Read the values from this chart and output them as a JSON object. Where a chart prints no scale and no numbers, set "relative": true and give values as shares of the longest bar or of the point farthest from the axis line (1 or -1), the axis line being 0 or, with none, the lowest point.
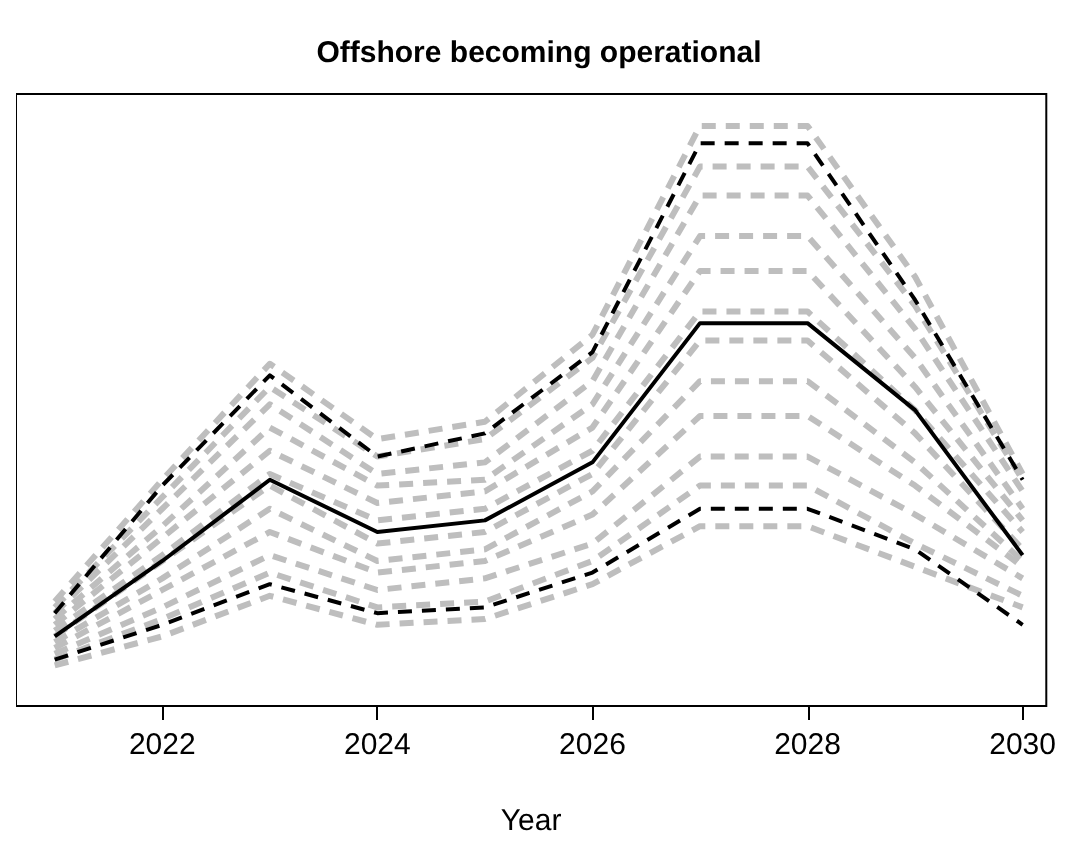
{
  "chart_data": {
    "type": "line",
    "title": "Offshore becoming operational",
    "xlabel": "Year",
    "relative": true,
    "grid": false,
    "marker": "none",
    "x": [
      2021,
      2022,
      2023,
      2024,
      2025,
      2026,
      2027,
      2028,
      2029,
      2030
    ],
    "xlim": [
      2020.64,
      2030.22
    ],
    "xticks": [
      2022,
      2024,
      2026,
      2028,
      2030
    ],
    "tick_labels": "x",
    "series": [
      {
        "color": "#bebebe",
        "line_style": "dashed",
        "values": [
          0.07,
          0.12,
          0.19,
          0.14,
          0.15,
          0.21,
          0.31,
          0.31,
          0.24,
          0.17
        ]
      },
      {
        "color": "#bebebe",
        "line_style": "dashed",
        "values": [
          0.08,
          0.15,
          0.23,
          0.17,
          0.18,
          0.25,
          0.38,
          0.38,
          0.28,
          0.19
        ]
      },
      {
        "color": "#bebebe",
        "line_style": "dashed",
        "values": [
          0.09,
          0.17,
          0.26,
          0.2,
          0.22,
          0.28,
          0.43,
          0.43,
          0.33,
          0.22
        ]
      },
      {
        "color": "#bebebe",
        "line_style": "dashed",
        "values": [
          0.1,
          0.2,
          0.3,
          0.23,
          0.25,
          0.33,
          0.5,
          0.5,
          0.38,
          0.24
        ]
      },
      {
        "color": "#bebebe",
        "line_style": "dashed",
        "values": [
          0.11,
          0.22,
          0.34,
          0.25,
          0.27,
          0.37,
          0.56,
          0.56,
          0.42,
          0.25
        ]
      },
      {
        "color": "#bebebe",
        "line_style": "dashed",
        "values": [
          0.12,
          0.25,
          0.38,
          0.28,
          0.3,
          0.4,
          0.63,
          0.63,
          0.47,
          0.27
        ]
      },
      {
        "color": "#bebebe",
        "line_style": "dashed",
        "values": [
          0.13,
          0.26,
          0.4,
          0.32,
          0.34,
          0.44,
          0.68,
          0.68,
          0.51,
          0.3
        ]
      },
      {
        "color": "#bebebe",
        "line_style": "dashed",
        "values": [
          0.14,
          0.29,
          0.44,
          0.35,
          0.37,
          0.48,
          0.75,
          0.75,
          0.55,
          0.32
        ]
      },
      {
        "color": "#bebebe",
        "line_style": "dashed",
        "values": [
          0.15,
          0.31,
          0.48,
          0.38,
          0.39,
          0.52,
          0.81,
          0.81,
          0.6,
          0.34
        ]
      },
      {
        "color": "#bebebe",
        "line_style": "dashed",
        "values": [
          0.16,
          0.34,
          0.52,
          0.4,
          0.42,
          0.56,
          0.88,
          0.88,
          0.65,
          0.37
        ]
      },
      {
        "color": "#bebebe",
        "line_style": "dashed",
        "values": [
          0.17,
          0.36,
          0.55,
          0.43,
          0.46,
          0.6,
          0.93,
          0.93,
          0.69,
          0.39
        ]
      },
      {
        "color": "#bebebe",
        "line_style": "dashed",
        "values": [
          0.18,
          0.39,
          0.59,
          0.46,
          0.49,
          0.64,
          1,
          1,
          0.74,
          0.4
        ]
      },
      {
        "color": "#000000",
        "line_style": "dashed",
        "values": [
          0.08,
          0.14,
          0.21,
          0.16,
          0.17,
          0.23,
          0.34,
          0.34,
          0.27,
          0.14
        ]
      },
      {
        "color": "#000000",
        "line_style": "dashed",
        "values": [
          0.16,
          0.38,
          0.57,
          0.43,
          0.47,
          0.61,
          0.97,
          0.97,
          0.7,
          0.39
        ]
      },
      {
        "color": "#000000",
        "line_style": "solid",
        "values": [
          0.12,
          0.25,
          0.39,
          0.3,
          0.32,
          0.42,
          0.66,
          0.66,
          0.51,
          0.26
        ]
      }
    ]
  }
}
